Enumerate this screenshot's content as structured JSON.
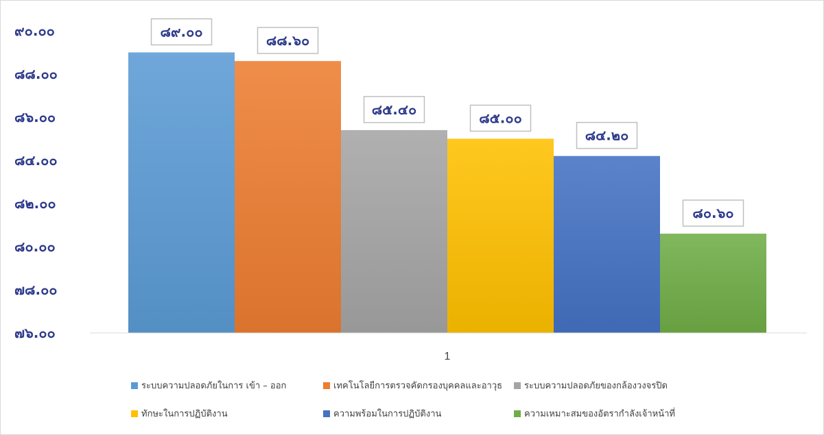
{
  "chart_data": {
    "type": "bar",
    "categories": [
      "1"
    ],
    "series": [
      {
        "name": "ระบบความปลอดภัยในการ เข้า – ออก",
        "values": [
          89.0
        ],
        "label": "๘๙.๐๐",
        "color": "#5b9bd5"
      },
      {
        "name": "เทคโนโลยีการตรวจคัดกรองบุคคลและอาวุธ",
        "values": [
          88.6
        ],
        "label": "๘๘.๖๐",
        "color": "#ed7d31"
      },
      {
        "name": "ระบบความปลอดภัยของกล้องวงจรปิด",
        "values": [
          85.4
        ],
        "label": "๘๕.๔๐",
        "color": "#a5a5a5"
      },
      {
        "name": "ทักษะในการปฏิบัติงาน",
        "values": [
          85.0
        ],
        "label": "๘๕.๐๐",
        "color": "#ffc000"
      },
      {
        "name": "ความพร้อมในการปฏิบัติงาน",
        "values": [
          84.2
        ],
        "label": "๘๔.๒๐",
        "color": "#4472c4"
      },
      {
        "name": "ความเหมาะสมของอัตรากำลังเจ้าหน้าที่",
        "values": [
          80.6
        ],
        "label": "๘๐.๖๐",
        "color": "#70ad47"
      }
    ],
    "yticks": [
      {
        "value": 90,
        "label": "๙๐.๐๐"
      },
      {
        "value": 88,
        "label": "๘๘.๐๐"
      },
      {
        "value": 86,
        "label": "๘๖.๐๐"
      },
      {
        "value": 84,
        "label": "๘๔.๐๐"
      },
      {
        "value": 82,
        "label": "๘๒.๐๐"
      },
      {
        "value": 80,
        "label": "๘๐.๐๐"
      },
      {
        "value": 78,
        "label": "๗๘.๐๐"
      },
      {
        "value": 76,
        "label": "๗๖.๐๐"
      }
    ],
    "ylim": [
      76,
      90
    ],
    "title": "",
    "xlabel": "",
    "ylabel": "",
    "grid": false,
    "legend_position": "bottom"
  }
}
